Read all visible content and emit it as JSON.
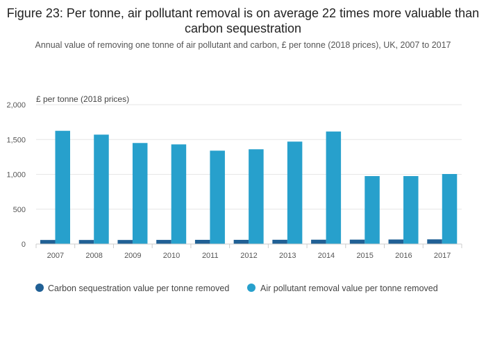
{
  "chart_data": {
    "type": "bar",
    "title": "Figure 23: Per tonne, air pollutant removal is on average 22 times more valuable than carbon sequestration",
    "subtitle": "Annual value of removing one tonne of air pollutant and carbon, £ per tonne (2018 prices), UK, 2007 to 2017",
    "ylabel": "£ per tonne (2018 prices)",
    "ylim": [
      0,
      2000
    ],
    "yticks": [
      0,
      500,
      1000,
      1500,
      2000
    ],
    "ytick_labels": [
      "0",
      "500",
      "1,000",
      "1,500",
      "2,000"
    ],
    "categories": [
      "2007",
      "2008",
      "2009",
      "2010",
      "2011",
      "2012",
      "2013",
      "2014",
      "2015",
      "2016",
      "2017"
    ],
    "series": [
      {
        "name": "Carbon sequestration value per tonne removed",
        "color": "#206095",
        "values": [
          58,
          58,
          58,
          59,
          60,
          60,
          61,
          62,
          63,
          65,
          67
        ]
      },
      {
        "name": "Air pollutant removal value per tonne removed",
        "color": "#27a0cc",
        "values": [
          1625,
          1570,
          1450,
          1430,
          1340,
          1360,
          1470,
          1615,
          975,
          975,
          1005
        ]
      }
    ],
    "grid": true,
    "legend": "bottom"
  }
}
